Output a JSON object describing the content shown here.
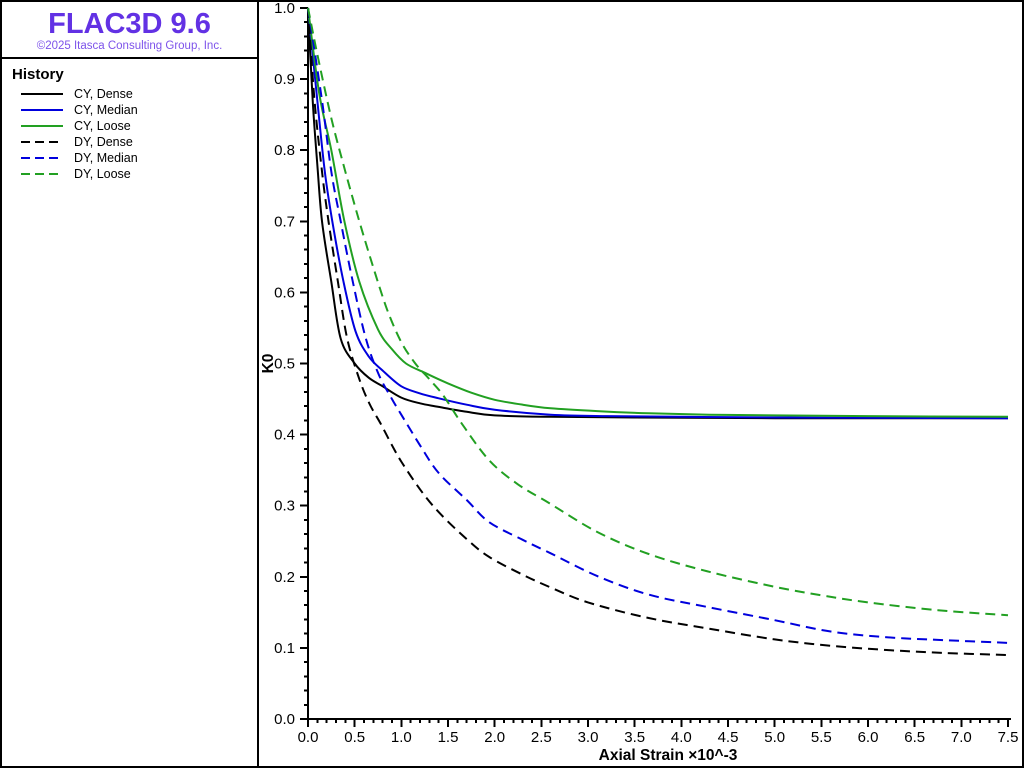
{
  "panel": {
    "title": "FLAC3D 9.6",
    "subtitle": "©2025 Itasca Consulting Group, Inc.",
    "title_color": "#6231e4",
    "subtitle_color": "#7d53ea",
    "legend_title": "History"
  },
  "chart_data": {
    "type": "line",
    "title": "",
    "xlabel": "Axial Strain ×10^-3",
    "ylabel": "K0",
    "xlim": [
      0,
      7.5
    ],
    "ylim": [
      0.0,
      1.0
    ],
    "x_major_step": 0.5,
    "x_minor_step": 0.1,
    "y_major_step": 0.1,
    "y_minor_step": 0.02,
    "grid": false,
    "legend_position": "left-panel",
    "axis_color": "#000000",
    "series": [
      {
        "name": "CY, Dense",
        "color": "#000000",
        "dash": "solid",
        "points": [
          [
            0,
            1.0
          ],
          [
            0.05,
            0.87
          ],
          [
            0.1,
            0.78
          ],
          [
            0.15,
            0.7
          ],
          [
            0.25,
            0.615
          ],
          [
            0.35,
            0.535
          ],
          [
            0.5,
            0.5
          ],
          [
            0.65,
            0.48
          ],
          [
            0.8,
            0.468
          ],
          [
            1.0,
            0.452
          ],
          [
            1.2,
            0.444
          ],
          [
            1.4,
            0.439
          ],
          [
            1.7,
            0.432
          ],
          [
            2.0,
            0.427
          ],
          [
            2.6,
            0.425
          ],
          [
            3.5,
            0.424
          ],
          [
            5.0,
            0.423
          ],
          [
            7.5,
            0.423
          ]
        ]
      },
      {
        "name": "CY, Median",
        "color": "#0000dd",
        "dash": "solid",
        "points": [
          [
            0,
            1.0
          ],
          [
            0.1,
            0.87
          ],
          [
            0.18,
            0.77
          ],
          [
            0.26,
            0.7
          ],
          [
            0.38,
            0.615
          ],
          [
            0.51,
            0.545
          ],
          [
            0.65,
            0.51
          ],
          [
            0.8,
            0.49
          ],
          [
            1.0,
            0.468
          ],
          [
            1.2,
            0.458
          ],
          [
            1.4,
            0.451
          ],
          [
            1.7,
            0.442
          ],
          [
            2.0,
            0.435
          ],
          [
            2.6,
            0.428
          ],
          [
            3.2,
            0.426
          ],
          [
            4.0,
            0.425
          ],
          [
            5.0,
            0.424
          ],
          [
            7.5,
            0.423
          ]
        ]
      },
      {
        "name": "CY, Loose",
        "color": "#22a022",
        "dash": "solid",
        "points": [
          [
            0,
            1.0
          ],
          [
            0.12,
            0.88
          ],
          [
            0.25,
            0.8
          ],
          [
            0.39,
            0.7
          ],
          [
            0.55,
            0.615
          ],
          [
            0.75,
            0.548
          ],
          [
            0.9,
            0.52
          ],
          [
            1.05,
            0.5
          ],
          [
            1.25,
            0.487
          ],
          [
            1.5,
            0.472
          ],
          [
            1.75,
            0.459
          ],
          [
            2.0,
            0.449
          ],
          [
            2.3,
            0.442
          ],
          [
            2.6,
            0.437
          ],
          [
            3.1,
            0.433
          ],
          [
            3.65,
            0.43
          ],
          [
            4.3,
            0.428
          ],
          [
            5.0,
            0.427
          ],
          [
            6.0,
            0.426
          ],
          [
            7.5,
            0.425
          ]
        ]
      },
      {
        "name": "DY, Dense",
        "color": "#000000",
        "dash": "dashed",
        "points": [
          [
            0,
            1.0
          ],
          [
            0.07,
            0.87
          ],
          [
            0.15,
            0.77
          ],
          [
            0.22,
            0.7
          ],
          [
            0.32,
            0.615
          ],
          [
            0.42,
            0.535
          ],
          [
            0.55,
            0.478
          ],
          [
            0.66,
            0.443
          ],
          [
            0.78,
            0.415
          ],
          [
            0.9,
            0.385
          ],
          [
            1.0,
            0.362
          ],
          [
            1.2,
            0.323
          ],
          [
            1.4,
            0.291
          ],
          [
            1.7,
            0.253
          ],
          [
            1.94,
            0.228
          ],
          [
            2.3,
            0.203
          ],
          [
            2.6,
            0.185
          ],
          [
            3.0,
            0.164
          ],
          [
            3.65,
            0.142
          ],
          [
            4.3,
            0.127
          ],
          [
            5.0,
            0.112
          ],
          [
            5.6,
            0.103
          ],
          [
            6.2,
            0.097
          ],
          [
            6.8,
            0.093
          ],
          [
            7.5,
            0.09
          ]
        ]
      },
      {
        "name": "DY, Median",
        "color": "#0000dd",
        "dash": "dashed",
        "points": [
          [
            0,
            1.0
          ],
          [
            0.15,
            0.87
          ],
          [
            0.25,
            0.77
          ],
          [
            0.35,
            0.7
          ],
          [
            0.48,
            0.615
          ],
          [
            0.62,
            0.535
          ],
          [
            0.76,
            0.484
          ],
          [
            0.9,
            0.45
          ],
          [
            1.0,
            0.428
          ],
          [
            1.2,
            0.385
          ],
          [
            1.4,
            0.346
          ],
          [
            1.7,
            0.308
          ],
          [
            1.94,
            0.277
          ],
          [
            2.3,
            0.252
          ],
          [
            2.6,
            0.233
          ],
          [
            3.1,
            0.201
          ],
          [
            3.65,
            0.175
          ],
          [
            4.3,
            0.157
          ],
          [
            5.0,
            0.139
          ],
          [
            5.6,
            0.123
          ],
          [
            6.2,
            0.115
          ],
          [
            6.8,
            0.111
          ],
          [
            7.5,
            0.107
          ]
        ]
      },
      {
        "name": "DY, Loose",
        "color": "#22a022",
        "dash": "dashed",
        "points": [
          [
            0,
            1.0
          ],
          [
            0.1,
            0.935
          ],
          [
            0.25,
            0.845
          ],
          [
            0.4,
            0.77
          ],
          [
            0.55,
            0.7
          ],
          [
            0.7,
            0.635
          ],
          [
            0.85,
            0.575
          ],
          [
            1.0,
            0.53
          ],
          [
            1.15,
            0.5
          ],
          [
            1.3,
            0.478
          ],
          [
            1.45,
            0.455
          ],
          [
            1.65,
            0.415
          ],
          [
            1.94,
            0.364
          ],
          [
            2.25,
            0.33
          ],
          [
            2.58,
            0.304
          ],
          [
            3.1,
            0.263
          ],
          [
            3.65,
            0.232
          ],
          [
            4.3,
            0.207
          ],
          [
            5.0,
            0.186
          ],
          [
            5.5,
            0.174
          ],
          [
            6.0,
            0.164
          ],
          [
            6.75,
            0.153
          ],
          [
            7.5,
            0.146
          ]
        ]
      }
    ]
  }
}
